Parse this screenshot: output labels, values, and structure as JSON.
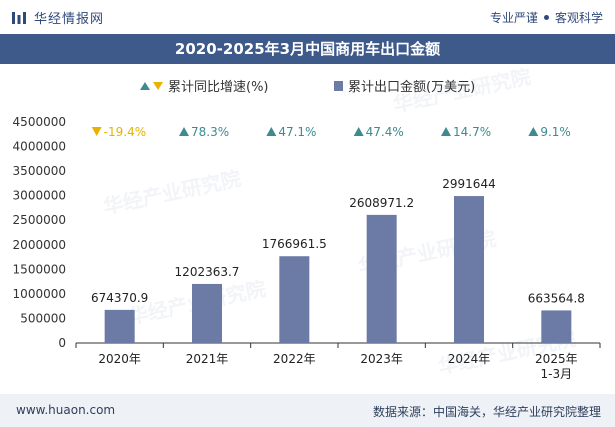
{
  "header": {
    "brand": "华经情报网",
    "slogan_left": "专业严谨",
    "slogan_right": "客观科学"
  },
  "footer": {
    "website": "www.huaon.com",
    "source": "数据来源：中国海关，华经产业研究院整理"
  },
  "watermark": "华经产业研究院",
  "colors": {
    "bar": "#6b7ba6",
    "up": "#3e8a8f",
    "down": "#e8b200",
    "title_bg": "#3d5a8a"
  },
  "chart_data": {
    "type": "bar",
    "title": "2020-2025年3月中国商用车出口金额",
    "categories": [
      "2020年",
      "2021年",
      "2022年",
      "2023年",
      "2024年",
      "2025年\n1-3月"
    ],
    "series": [
      {
        "name": "累计出口金额(万美元)",
        "values": [
          674370.9,
          1202363.7,
          1766961.5,
          2608971.2,
          2991644,
          663564.8
        ],
        "labels": [
          "674370.9",
          "1202363.7",
          "1766961.5",
          "2608971.2",
          "2991644",
          "663564.8"
        ]
      },
      {
        "name": "累计同比增速(%)",
        "values": [
          -19.4,
          78.3,
          47.1,
          47.4,
          14.7,
          9.1
        ],
        "labels": [
          "-19.4%",
          "78.3%",
          "47.1%",
          "47.4%",
          "14.7%",
          "9.1%"
        ]
      }
    ],
    "y_ticks": [
      "0",
      "500000",
      "1000000",
      "1500000",
      "2000000",
      "2500000",
      "3000000",
      "3500000",
      "4000000",
      "4500000"
    ],
    "ylim": [
      0,
      4500000
    ],
    "legend_position": "top-center",
    "grid": false
  }
}
